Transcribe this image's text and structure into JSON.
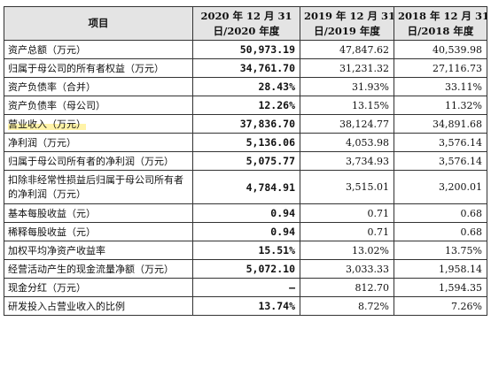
{
  "table": {
    "headers": [
      [
        "项目"
      ],
      [
        "2020 年 12 月 31",
        "日/2020 年度"
      ],
      [
        "2019 年 12 月 31",
        "日/2019 年度"
      ],
      [
        "2018 年 12 月 31",
        "日/2018 年度"
      ]
    ],
    "rows": [
      {
        "label": "资产总额（万元）",
        "v2020": "50,973.19",
        "v2019": "47,847.62",
        "v2018": "40,539.98"
      },
      {
        "label": "归属于母公司的所有者权益（万元）",
        "v2020": "34,761.70",
        "v2019": "31,231.32",
        "v2018": "27,116.73"
      },
      {
        "label": "资产负债率（合并）",
        "v2020": "28.43%",
        "v2019": "31.93%",
        "v2018": "33.11%"
      },
      {
        "label": "资产负债率（母公司）",
        "v2020": "12.26%",
        "v2019": "13.15%",
        "v2018": "11.32%"
      },
      {
        "label": "营业收入（万元）",
        "v2020": "37,836.70",
        "v2019": "38,124.77",
        "v2018": "34,891.68"
      },
      {
        "label": "净利润（万元）",
        "v2020": "5,136.06",
        "v2019": "4,053.98",
        "v2018": "3,576.14"
      },
      {
        "label": "归属于母公司所有者的净利润（万元）",
        "v2020": "5,075.77",
        "v2019": "3,734.93",
        "v2018": "3,576.14"
      },
      {
        "label": "扣除非经常性损益后归属于母公司所有者的净利润（万元）",
        "v2020": "4,784.91",
        "v2019": "3,515.01",
        "v2018": "3,200.01"
      },
      {
        "label": "基本每股收益（元）",
        "v2020": "0.94",
        "v2019": "0.71",
        "v2018": "0.68"
      },
      {
        "label": "稀释每股收益（元）",
        "v2020": "0.94",
        "v2019": "0.71",
        "v2018": "0.68"
      },
      {
        "label": "加权平均净资产收益率",
        "v2020": "15.51%",
        "v2019": "13.02%",
        "v2018": "13.75%"
      },
      {
        "label": "经营活动产生的现金流量净额（万元）",
        "v2020": "5,072.10",
        "v2019": "3,033.33",
        "v2018": "1,958.14"
      },
      {
        "label": "现金分红（万元）",
        "v2020": "–",
        "v2019": "812.70",
        "v2018": "1,594.35"
      },
      {
        "label": "研发投入占营业收入的比例",
        "v2020": "13.74%",
        "v2019": "8.72%",
        "v2018": "7.26%"
      }
    ]
  },
  "highlight_color": "#fff3a8"
}
